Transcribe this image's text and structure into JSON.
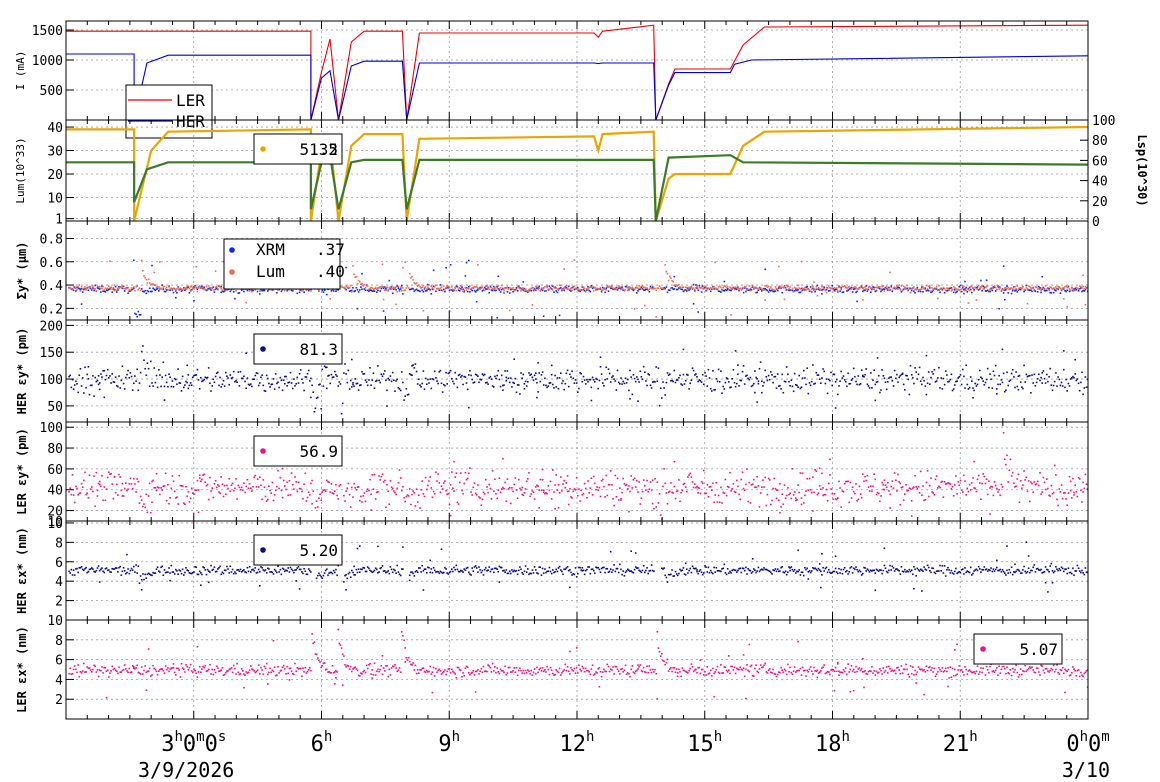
{
  "figure": {
    "time_axis": {
      "ticks": [
        {
          "hour": 3,
          "label": "3",
          "sup": "h",
          "label2": "0",
          "sup2": "m",
          "label3": "0",
          "sup3": "s"
        },
        {
          "hour": 6,
          "label": "6",
          "sup": "h"
        },
        {
          "hour": 9,
          "label": "9",
          "sup": "h"
        },
        {
          "hour": 12,
          "label": "12",
          "sup": "h"
        },
        {
          "hour": 15,
          "label": "15",
          "sup": "h"
        },
        {
          "hour": 18,
          "label": "18",
          "sup": "h"
        },
        {
          "hour": 21,
          "label": "21",
          "sup": "h"
        },
        {
          "hour": 24,
          "label": "0",
          "sup": "h",
          "label2": "0",
          "sup2": "m"
        }
      ],
      "date_start": "3/9/2026",
      "date_end": "3/10"
    }
  },
  "chart_data": [
    {
      "type": "line",
      "ylabel": "I (mA)",
      "ylim": [
        0,
        1650
      ],
      "yticks": [
        500,
        1000,
        1500
      ],
      "grid": true,
      "legend_placement": "left",
      "series": [
        {
          "name": "LER",
          "color": "#e8000b",
          "points": [
            [
              0,
              1480
            ],
            [
              5.75,
              1480
            ],
            [
              5.75,
              0
            ],
            [
              6.0,
              800
            ],
            [
              6.2,
              1350
            ],
            [
              6.4,
              0
            ],
            [
              6.7,
              1300
            ],
            [
              7.0,
              1480
            ],
            [
              7.9,
              1480
            ],
            [
              8.0,
              0
            ],
            [
              8.3,
              1450
            ],
            [
              12.4,
              1450
            ],
            [
              12.5,
              1380
            ],
            [
              12.6,
              1480
            ],
            [
              13.8,
              1580
            ],
            [
              13.85,
              0
            ],
            [
              14.15,
              600
            ],
            [
              14.3,
              850
            ],
            [
              15.6,
              850
            ],
            [
              15.9,
              1250
            ],
            [
              16.4,
              1550
            ],
            [
              24,
              1580
            ]
          ]
        },
        {
          "name": "HER",
          "color": "#0000cc",
          "points": [
            [
              0,
              1100
            ],
            [
              1.6,
              1100
            ],
            [
              1.6,
              0
            ],
            [
              1.9,
              950
            ],
            [
              2.4,
              1080
            ],
            [
              5.75,
              1080
            ],
            [
              5.75,
              0
            ],
            [
              6.0,
              700
            ],
            [
              6.2,
              820
            ],
            [
              6.4,
              0
            ],
            [
              6.7,
              900
            ],
            [
              7.0,
              980
            ],
            [
              7.9,
              980
            ],
            [
              8.0,
              0
            ],
            [
              8.3,
              950
            ],
            [
              12.4,
              950
            ],
            [
              12.5,
              940
            ],
            [
              12.6,
              950
            ],
            [
              13.8,
              950
            ],
            [
              13.85,
              0
            ],
            [
              14.15,
              580
            ],
            [
              14.3,
              790
            ],
            [
              15.6,
              790
            ],
            [
              15.7,
              930
            ],
            [
              16.1,
              1000
            ],
            [
              24,
              1070
            ]
          ]
        }
      ]
    },
    {
      "type": "line",
      "ylabel": "Lum(10^33)",
      "ylabel2": "Lsp(10^30)",
      "ylim": [
        0,
        43
      ],
      "yticks": [
        1,
        10,
        20,
        30,
        40
      ],
      "ylim2": [
        0,
        100
      ],
      "yticks2": [
        0,
        20,
        40,
        60,
        80,
        100
      ],
      "legend_values": [
        "35",
        "51.2"
      ],
      "series": [
        {
          "color": "#e8a600",
          "points": [
            [
              0,
              39
            ],
            [
              1.6,
              39
            ],
            [
              1.6,
              0
            ],
            [
              2.0,
              30
            ],
            [
              2.4,
              38
            ],
            [
              5.75,
              39
            ],
            [
              5.75,
              0
            ],
            [
              6.0,
              30
            ],
            [
              6.2,
              35
            ],
            [
              6.4,
              0
            ],
            [
              6.7,
              32
            ],
            [
              7.0,
              37
            ],
            [
              7.9,
              37
            ],
            [
              8.0,
              0
            ],
            [
              8.3,
              35
            ],
            [
              12.4,
              36
            ],
            [
              12.5,
              30
            ],
            [
              12.6,
              37
            ],
            [
              13.8,
              38
            ],
            [
              13.85,
              0
            ],
            [
              14.15,
              18
            ],
            [
              14.3,
              20
            ],
            [
              15.6,
              20
            ],
            [
              15.9,
              32
            ],
            [
              16.4,
              38
            ],
            [
              24,
              40
            ]
          ]
        },
        {
          "color": "#3e7a2a",
          "points": [
            [
              0,
              25
            ],
            [
              1.6,
              25
            ],
            [
              1.6,
              8
            ],
            [
              1.9,
              22
            ],
            [
              2.4,
              25
            ],
            [
              5.75,
              25
            ],
            [
              5.75,
              5
            ],
            [
              6.0,
              25
            ],
            [
              6.2,
              28
            ],
            [
              6.4,
              5
            ],
            [
              6.7,
              25
            ],
            [
              7.0,
              26
            ],
            [
              7.9,
              26
            ],
            [
              8.0,
              5
            ],
            [
              8.3,
              26
            ],
            [
              13.8,
              26
            ],
            [
              13.85,
              0
            ],
            [
              14.15,
              27
            ],
            [
              15.6,
              28
            ],
            [
              15.9,
              25
            ],
            [
              24,
              24
            ]
          ]
        }
      ]
    },
    {
      "type": "scatter",
      "ylabel": "Σy* (μm)",
      "ylim": [
        0.1,
        0.95
      ],
      "yticks": [
        0.2,
        0.4,
        0.6,
        0.8
      ],
      "legend": [
        {
          "name": "XRM",
          "value": ".37",
          "color": "#0a28f0"
        },
        {
          "name": "Lum",
          "value": ".40",
          "color": "#f06a50"
        }
      ],
      "series": [
        {
          "name": "XRM",
          "color": "#0a28f0",
          "base": 0.37,
          "noise": 0.015,
          "gaps": [
            [
              1.6,
              1.75,
              0.15
            ],
            [
              5.75,
              5.85,
              0.28
            ],
            [
              6.4,
              6.5,
              0.22
            ],
            [
              13.85,
              13.95,
              0.3
            ]
          ]
        },
        {
          "name": "Lum",
          "color": "#f06a50",
          "base": 0.38,
          "noise": 0.012,
          "spikes": [
            [
              1.75,
              0.65
            ],
            [
              5.95,
              0.6
            ],
            [
              6.7,
              0.6
            ],
            [
              8.05,
              0.55
            ],
            [
              14.05,
              0.65
            ]
          ]
        }
      ]
    },
    {
      "type": "scatter",
      "ylabel": "HER εy* (pm)",
      "ylim": [
        20,
        210
      ],
      "yticks": [
        50,
        100,
        150,
        200
      ],
      "legend_values": [
        "81.3"
      ],
      "series": [
        {
          "color": "#0a0a8c",
          "base": 100,
          "noise": 12,
          "spikes": [
            [
              1.75,
              190
            ],
            [
              5.95,
              150
            ],
            [
              6.5,
              150
            ],
            [
              8.05,
              150
            ],
            [
              14.1,
              140
            ]
          ],
          "dips": [
            [
              5.8,
              40
            ],
            [
              6.45,
              40
            ],
            [
              7.9,
              60
            ],
            [
              13.9,
              50
            ]
          ]
        }
      ]
    },
    {
      "type": "scatter",
      "ylabel": "LER εy* (pm)",
      "ylim": [
        10,
        105
      ],
      "yticks": [
        10,
        20,
        40,
        60,
        80,
        100
      ],
      "legend_values": [
        "56.9"
      ],
      "series": [
        {
          "color": "#ee1188",
          "base": 43,
          "noise": 8,
          "spikes": [
            [
              22.0,
              95
            ]
          ],
          "dips": [
            [
              1.7,
              20
            ],
            [
              5.8,
              15
            ],
            [
              6.45,
              15
            ],
            [
              7.9,
              25
            ],
            [
              13.9,
              25
            ]
          ]
        }
      ]
    },
    {
      "type": "scatter",
      "ylabel": "HER εx* (nm)",
      "ylim": [
        0,
        10.2
      ],
      "yticks": [
        2,
        4,
        6,
        8,
        10
      ],
      "legend_values": [
        "5.20"
      ],
      "series": [
        {
          "color": "#0a0a8c",
          "base": 5.2,
          "noise": 0.25,
          "dips": [
            [
              1.7,
              3.5
            ],
            [
              5.8,
              3.2
            ],
            [
              6.45,
              3.8
            ],
            [
              7.9,
              3.8
            ],
            [
              14.05,
              4.0
            ]
          ]
        }
      ]
    },
    {
      "type": "scatter",
      "ylabel": "LER εx* (nm)",
      "ylim": [
        0,
        10
      ],
      "yticks": [
        2,
        4,
        6,
        8,
        10
      ],
      "legend_values": [
        "5.07"
      ],
      "series": [
        {
          "color": "#ee1188",
          "base": 5.0,
          "noise": 0.3,
          "spikes": [
            [
              5.75,
              10
            ],
            [
              6.35,
              10
            ],
            [
              7.85,
              10
            ],
            [
              13.85,
              10
            ]
          ]
        }
      ]
    }
  ]
}
